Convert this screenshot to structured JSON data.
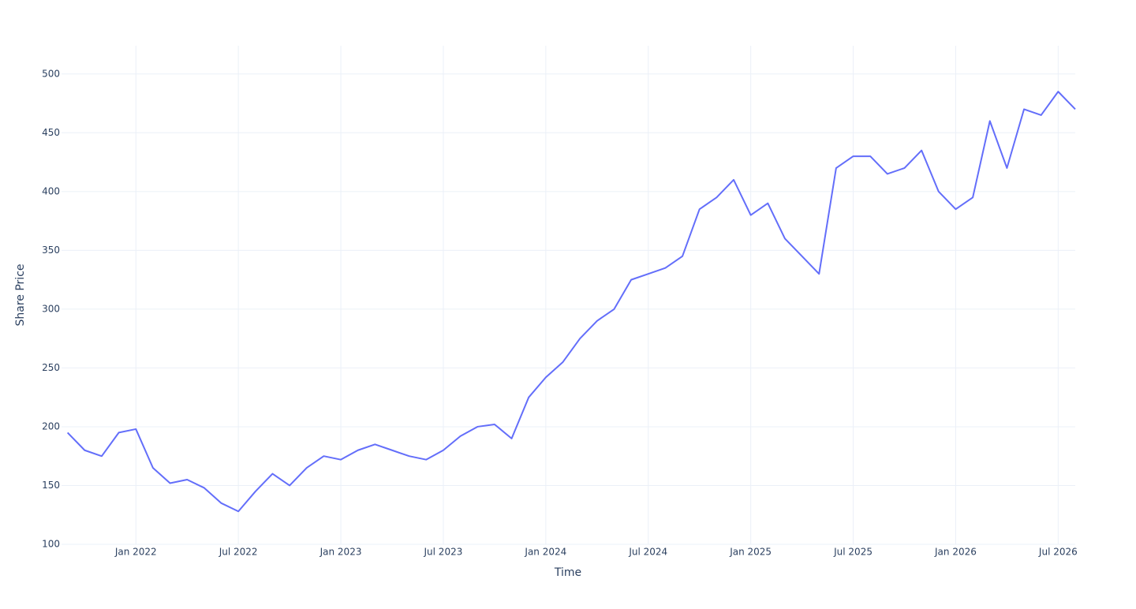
{
  "chart_data": {
    "type": "line",
    "x_label": "Time",
    "y_label": "Share Price",
    "x": [
      "2021-09",
      "2021-10",
      "2021-11",
      "2021-12",
      "2022-01",
      "2022-02",
      "2022-03",
      "2022-04",
      "2022-05",
      "2022-06",
      "2022-07",
      "2022-08",
      "2022-09",
      "2022-10",
      "2022-11",
      "2022-12",
      "2023-01",
      "2023-02",
      "2023-03",
      "2023-04",
      "2023-05",
      "2023-06",
      "2023-07",
      "2023-08",
      "2023-09",
      "2023-10",
      "2023-11",
      "2023-12",
      "2024-01",
      "2024-02",
      "2024-03",
      "2024-04",
      "2024-05",
      "2024-06",
      "2024-07",
      "2024-08",
      "2024-09",
      "2024-10",
      "2024-11",
      "2024-12",
      "2025-01",
      "2025-02",
      "2025-03",
      "2025-04",
      "2025-05",
      "2025-06",
      "2025-07",
      "2025-08",
      "2025-09",
      "2025-10",
      "2025-11",
      "2025-12",
      "2026-01",
      "2026-02",
      "2026-03",
      "2026-04",
      "2026-05",
      "2026-06",
      "2026-07",
      "2026-08"
    ],
    "series": [
      {
        "color": "#636efa",
        "values": [
          195,
          180,
          175,
          195,
          198,
          165,
          152,
          155,
          148,
          135,
          128,
          145,
          160,
          150,
          165,
          175,
          172,
          180,
          185,
          180,
          175,
          172,
          180,
          192,
          200,
          202,
          190,
          225,
          242,
          255,
          275,
          290,
          300,
          325,
          330,
          335,
          345,
          385,
          395,
          410,
          380,
          390,
          360,
          345,
          330,
          420,
          430,
          430,
          415,
          420,
          435,
          400,
          385,
          395,
          460,
          420,
          470,
          465,
          485,
          470
        ]
      }
    ],
    "xlim": [
      "2021-08",
      "2026-08"
    ],
    "xticks": [
      {
        "value": "2022-01",
        "label": "Jan 2022"
      },
      {
        "value": "2022-07",
        "label": "Jul 2022"
      },
      {
        "value": "2023-01",
        "label": "Jan 2023"
      },
      {
        "value": "2023-07",
        "label": "Jul 2023"
      },
      {
        "value": "2024-01",
        "label": "Jan 2024"
      },
      {
        "value": "2024-07",
        "label": "Jul 2024"
      },
      {
        "value": "2025-01",
        "label": "Jan 2025"
      },
      {
        "value": "2025-07",
        "label": "Jul 2025"
      },
      {
        "value": "2026-01",
        "label": "Jan 2026"
      },
      {
        "value": "2026-07",
        "label": "Jul 2026"
      }
    ],
    "ylim": [
      100,
      524
    ],
    "yticks": [
      100,
      150,
      200,
      250,
      300,
      350,
      400,
      450,
      500
    ],
    "grid": true
  }
}
